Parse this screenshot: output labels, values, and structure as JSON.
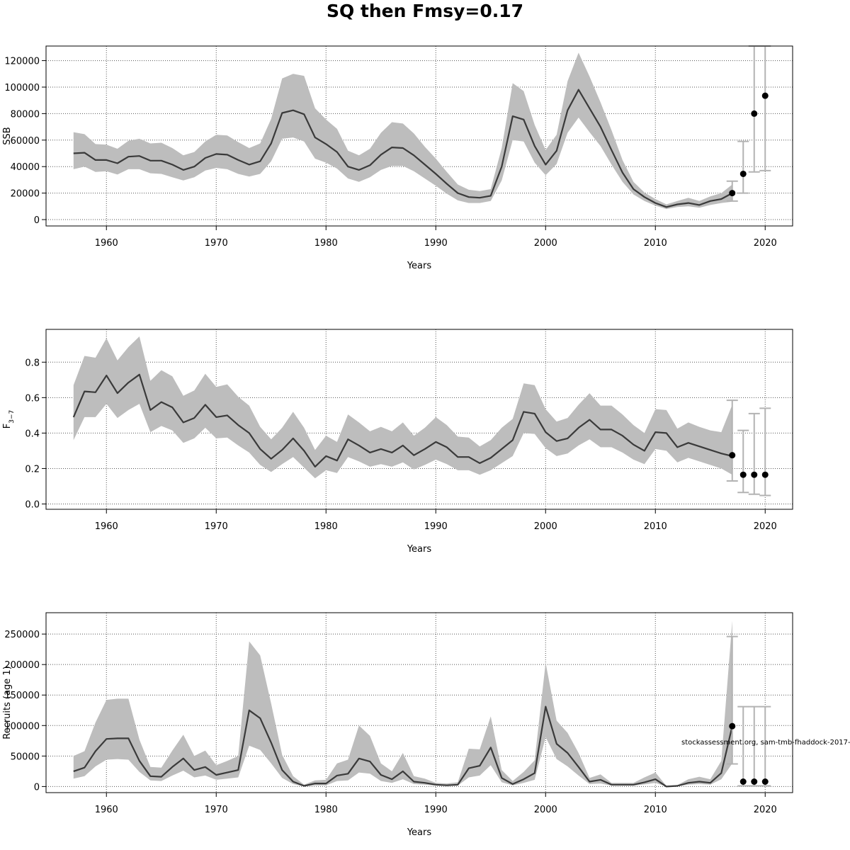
{
  "title": "SQ then Fmsy=0.17",
  "footnote": "stockassessment.org, sam-tmb-fhaddock-2017-",
  "colors": {
    "line": "#3a3a3a",
    "band": "#bdbdbd",
    "errorbar": "#b3b3b3",
    "point": "#000000",
    "grid": "#555555"
  },
  "chart_data": [
    {
      "type": "line",
      "ylabel": "SSB",
      "xlabel": "Years",
      "xlim": [
        1954.5,
        2022.5
      ],
      "ylim": [
        -4800,
        131000
      ],
      "xticks": [
        1960,
        1970,
        1980,
        1990,
        2000,
        2010,
        2020
      ],
      "yticks": [
        0,
        20000,
        40000,
        60000,
        80000,
        100000,
        120000
      ],
      "grid": true,
      "x_start": 1957,
      "mean": [
        50000,
        50500,
        45000,
        45000,
        42500,
        47500,
        48000,
        44500,
        44500,
        41500,
        37500,
        40000,
        46500,
        49500,
        49000,
        45000,
        41500,
        44000,
        57500,
        80500,
        82500,
        79500,
        62000,
        57000,
        51000,
        40000,
        37500,
        41000,
        49000,
        54500,
        54000,
        48500,
        41500,
        34500,
        27000,
        20000,
        17000,
        16500,
        18000,
        40000,
        78000,
        75500,
        55500,
        41500,
        52000,
        82500,
        98000,
        84000,
        70000,
        52500,
        35500,
        23000,
        17000,
        12500,
        9500,
        11500,
        12500,
        11000,
        14000,
        15500,
        20000
      ],
      "lower": [
        38000,
        40000,
        36000,
        36500,
        34000,
        38000,
        38000,
        35000,
        34500,
        32000,
        29500,
        32000,
        37000,
        39000,
        38000,
        34500,
        32500,
        34500,
        44000,
        61000,
        62000,
        59000,
        46000,
        43000,
        38500,
        31000,
        28500,
        32000,
        37500,
        40500,
        40500,
        36500,
        31000,
        25500,
        19500,
        14500,
        12500,
        12500,
        14000,
        29500,
        60000,
        59000,
        43000,
        33500,
        42000,
        65500,
        77000,
        66000,
        55500,
        41500,
        28500,
        19000,
        14000,
        10500,
        8000,
        9500,
        10000,
        9000,
        11000,
        12500,
        13500
      ],
      "upper": [
        66000,
        64500,
        57000,
        56500,
        53500,
        59500,
        61000,
        57500,
        58000,
        54000,
        48500,
        51000,
        59000,
        64000,
        63500,
        58500,
        54000,
        57500,
        76000,
        106500,
        110000,
        108500,
        84000,
        75500,
        68500,
        52000,
        48500,
        53500,
        65500,
        73500,
        72500,
        65000,
        55000,
        46000,
        36000,
        26500,
        22500,
        21500,
        23000,
        54000,
        103000,
        97000,
        71500,
        52500,
        64000,
        104500,
        126000,
        108000,
        88500,
        67500,
        45000,
        28500,
        20500,
        15500,
        11500,
        14000,
        16500,
        14000,
        17500,
        20000,
        26500
      ],
      "projection": {
        "years": [
          2017,
          2018,
          2019,
          2020
        ],
        "median": [
          20000,
          34500,
          80000,
          93500
        ],
        "low": [
          14000,
          20000,
          36000,
          37000
        ],
        "high": [
          29000,
          59000,
          131000,
          131000
        ]
      }
    },
    {
      "type": "line",
      "ylabel": "F3−7",
      "xlabel": "Years",
      "xlim": [
        1954.5,
        2022.5
      ],
      "ylim": [
        -0.03,
        0.985
      ],
      "xticks": [
        1960,
        1970,
        1980,
        1990,
        2000,
        2010,
        2020
      ],
      "yticks": [
        0.0,
        0.2,
        0.4,
        0.6,
        0.8
      ],
      "tick_labels": [
        "0.0",
        "0.2",
        "0.4",
        "0.6",
        "0.8"
      ],
      "grid": true,
      "x_start": 1957,
      "mean": [
        0.49,
        0.635,
        0.63,
        0.725,
        0.625,
        0.685,
        0.73,
        0.53,
        0.575,
        0.545,
        0.46,
        0.485,
        0.56,
        0.49,
        0.5,
        0.445,
        0.4,
        0.31,
        0.255,
        0.305,
        0.37,
        0.3,
        0.21,
        0.27,
        0.245,
        0.365,
        0.33,
        0.29,
        0.31,
        0.29,
        0.33,
        0.275,
        0.31,
        0.35,
        0.32,
        0.265,
        0.265,
        0.23,
        0.26,
        0.31,
        0.36,
        0.52,
        0.51,
        0.405,
        0.355,
        0.37,
        0.43,
        0.475,
        0.42,
        0.42,
        0.385,
        0.335,
        0.3,
        0.405,
        0.4,
        0.32,
        0.345,
        0.325,
        0.305,
        0.285,
        0.27
      ],
      "lower": [
        0.36,
        0.49,
        0.49,
        0.565,
        0.485,
        0.53,
        0.565,
        0.405,
        0.44,
        0.415,
        0.345,
        0.37,
        0.43,
        0.37,
        0.375,
        0.33,
        0.29,
        0.22,
        0.18,
        0.225,
        0.265,
        0.205,
        0.145,
        0.19,
        0.175,
        0.265,
        0.24,
        0.21,
        0.225,
        0.21,
        0.235,
        0.195,
        0.22,
        0.25,
        0.225,
        0.19,
        0.19,
        0.165,
        0.19,
        0.23,
        0.27,
        0.4,
        0.395,
        0.315,
        0.27,
        0.285,
        0.33,
        0.365,
        0.32,
        0.32,
        0.29,
        0.25,
        0.225,
        0.31,
        0.3,
        0.235,
        0.26,
        0.24,
        0.22,
        0.2,
        0.165
      ],
      "upper": [
        0.67,
        0.835,
        0.825,
        0.935,
        0.81,
        0.885,
        0.945,
        0.695,
        0.755,
        0.72,
        0.61,
        0.64,
        0.735,
        0.66,
        0.675,
        0.605,
        0.555,
        0.435,
        0.365,
        0.43,
        0.52,
        0.43,
        0.305,
        0.385,
        0.35,
        0.505,
        0.46,
        0.41,
        0.435,
        0.41,
        0.46,
        0.385,
        0.43,
        0.49,
        0.445,
        0.38,
        0.375,
        0.325,
        0.36,
        0.43,
        0.48,
        0.68,
        0.67,
        0.535,
        0.465,
        0.485,
        0.56,
        0.625,
        0.555,
        0.555,
        0.505,
        0.445,
        0.4,
        0.535,
        0.53,
        0.425,
        0.46,
        0.435,
        0.415,
        0.405,
        0.56
      ],
      "projection": {
        "years": [
          2017,
          2018,
          2019,
          2020
        ],
        "median": [
          0.275,
          0.165,
          0.165,
          0.165
        ],
        "low": [
          0.13,
          0.065,
          0.055,
          0.048
        ],
        "high": [
          0.585,
          0.415,
          0.51,
          0.54
        ]
      }
    },
    {
      "type": "line",
      "ylabel": "Recruits (age 1)",
      "xlabel": "Years",
      "xlim": [
        1954.5,
        2022.5
      ],
      "ylim": [
        -10000,
        285000
      ],
      "xticks": [
        1960,
        1970,
        1980,
        1990,
        2000,
        2010,
        2020
      ],
      "yticks": [
        0,
        50000,
        100000,
        150000,
        200000,
        250000
      ],
      "grid": true,
      "x_start": 1957,
      "mean": [
        25000,
        31000,
        58000,
        78000,
        79000,
        79000,
        42000,
        17000,
        16000,
        32000,
        46000,
        27000,
        32000,
        19000,
        23000,
        27000,
        125000,
        112000,
        72000,
        27000,
        8000,
        1000,
        5000,
        5000,
        18000,
        21000,
        46000,
        41000,
        19000,
        12000,
        25000,
        8000,
        6000,
        3000,
        2000,
        3000,
        30000,
        34000,
        64000,
        14000,
        4000,
        12000,
        22000,
        131000,
        70000,
        55000,
        32000,
        8000,
        11000,
        3000,
        3000,
        3000,
        7000,
        12000,
        0,
        1000,
        6000,
        8000,
        6000,
        22000,
        99000
      ],
      "lower": [
        13000,
        17000,
        33000,
        44000,
        45000,
        44000,
        24000,
        10000,
        9000,
        18000,
        26000,
        15000,
        18000,
        11000,
        13000,
        15000,
        67000,
        60000,
        38000,
        14000,
        4000,
        0,
        2000,
        2000,
        9000,
        10000,
        23000,
        21000,
        9000,
        6000,
        12000,
        4000,
        3000,
        1500,
        1000,
        1500,
        15000,
        18000,
        35000,
        7000,
        2000,
        6000,
        11000,
        81000,
        45000,
        33000,
        18000,
        4000,
        5000,
        1500,
        1500,
        1500,
        3500,
        6000,
        0,
        500,
        3000,
        4000,
        3000,
        12000,
        38000
      ],
      "upper": [
        50000,
        58000,
        105000,
        142000,
        144000,
        144000,
        77000,
        32000,
        31000,
        59000,
        85000,
        50000,
        59000,
        35000,
        42000,
        50000,
        238000,
        215000,
        136000,
        52000,
        17000,
        3000,
        10000,
        11000,
        38000,
        44000,
        100000,
        83000,
        38000,
        25000,
        55000,
        17000,
        13000,
        6000,
        5000,
        7000,
        62000,
        61000,
        115000,
        27000,
        9000,
        24000,
        43000,
        203000,
        108000,
        88000,
        55000,
        14000,
        20000,
        6000,
        6000,
        6000,
        15000,
        23000,
        1000,
        2500,
        12000,
        16000,
        12000,
        42000,
        272000
      ],
      "projection": {
        "years": [
          2017,
          2018,
          2019,
          2020
        ],
        "median": [
          99000,
          8000,
          8000,
          8000
        ],
        "low": [
          37000,
          1000,
          1000,
          1000
        ],
        "high": [
          246000,
          131000,
          131000,
          131000
        ]
      }
    }
  ]
}
